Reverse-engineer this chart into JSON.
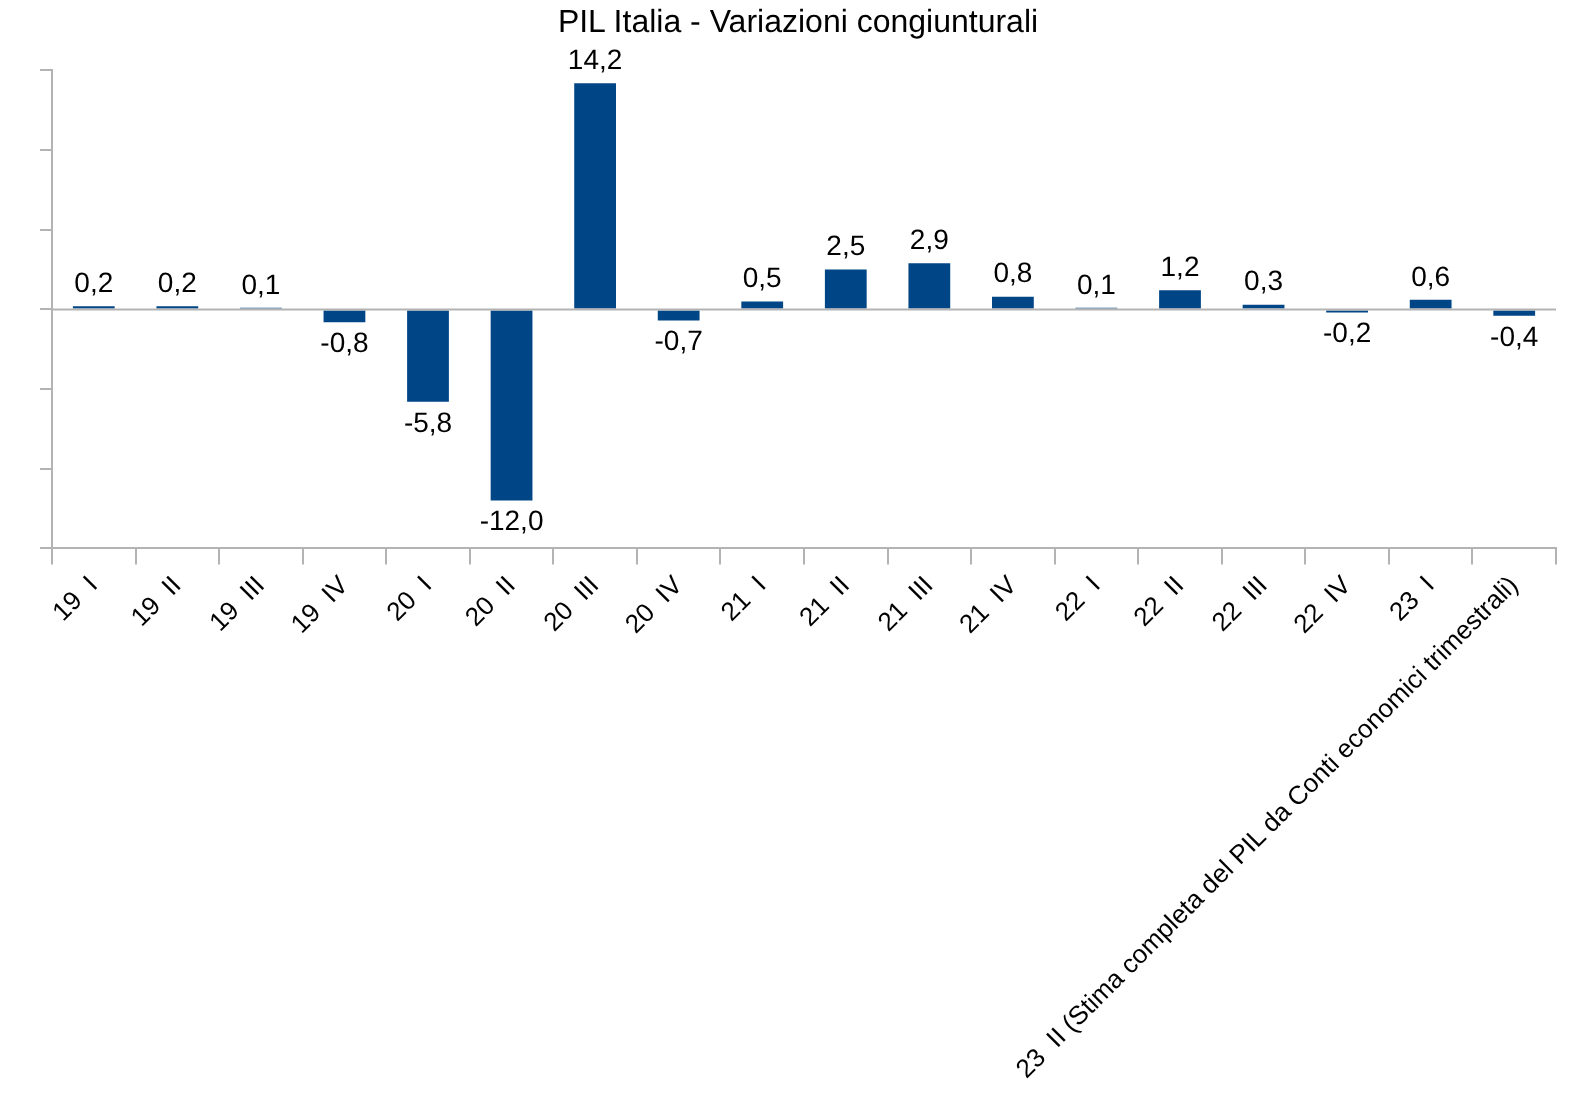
{
  "chart_data": {
    "type": "bar",
    "title": "PIL Italia - Variazioni congiunturali",
    "categories": [
      "19  I",
      "19  II",
      "19  III",
      "19  IV",
      "20  I",
      "20  II",
      "20  III",
      "20  IV",
      "21  I",
      "21  II",
      "21  III",
      "21  IV",
      "22  I",
      "22  II",
      "22  III",
      "22  IV",
      "23  I",
      "23  II (Stima completa del PIL da Conti economici trimestrali)"
    ],
    "values": [
      0.2,
      0.2,
      0.1,
      -0.8,
      -5.8,
      -12.0,
      14.2,
      -0.7,
      0.5,
      2.5,
      2.9,
      0.8,
      0.1,
      1.2,
      0.3,
      -0.2,
      0.6,
      -0.4
    ],
    "value_labels": [
      "0,2",
      "0,2",
      "0,1",
      "-0,8",
      "-5,8",
      "-12,0",
      "14,2",
      "-0,7",
      "0,5",
      "2,5",
      "2,9",
      "0,8",
      "0,1",
      "1,2",
      "0,3",
      "-0,2",
      "0,6",
      "-0,4"
    ],
    "color": "#004586",
    "grid": false,
    "legend": false,
    "tick_labels": "x"
  }
}
